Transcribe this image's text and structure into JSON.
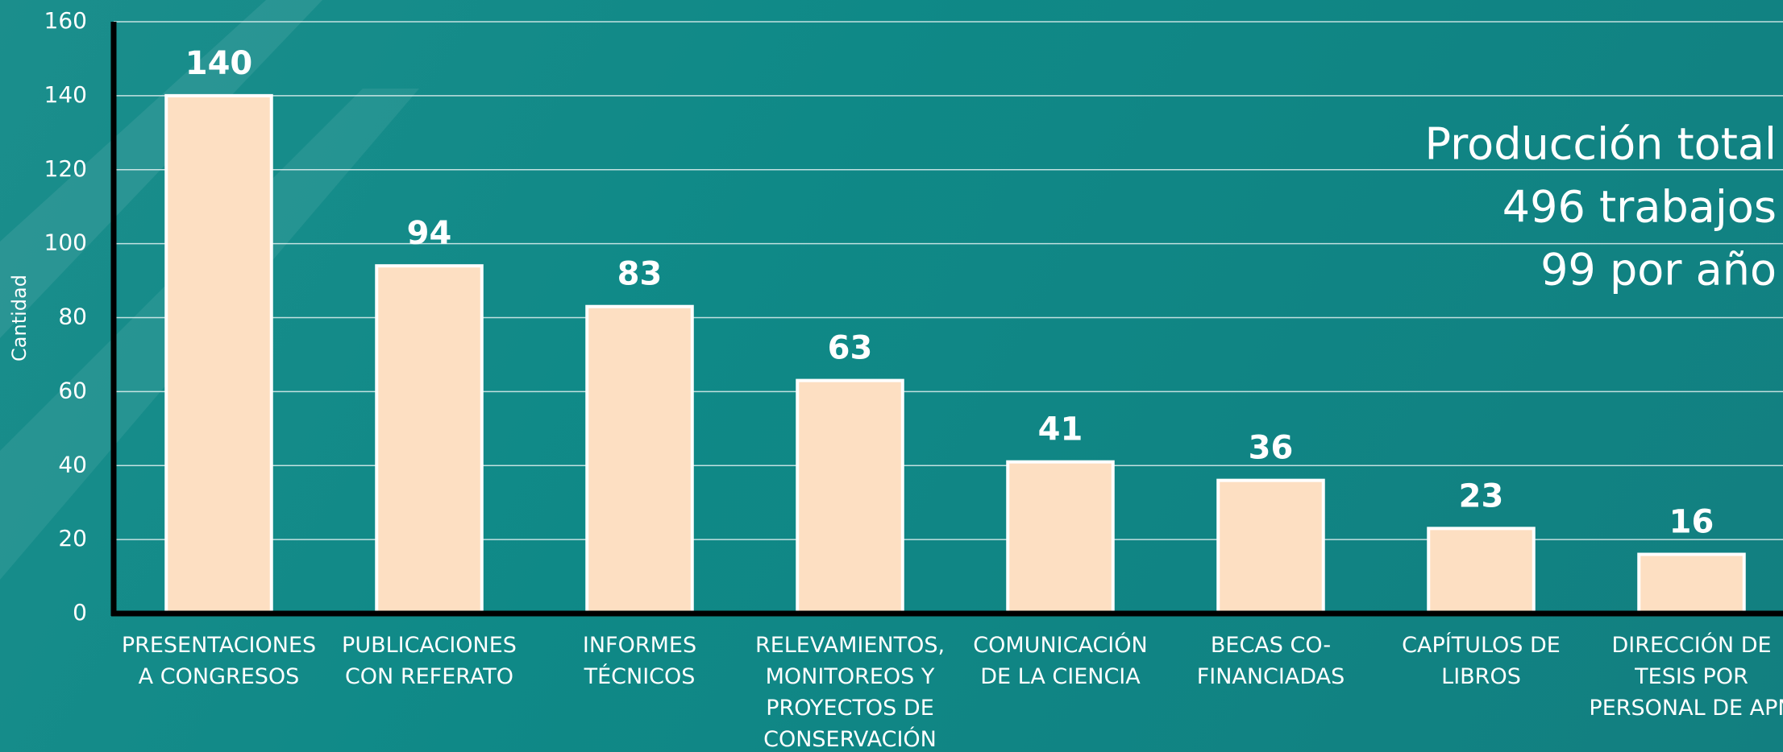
{
  "chart_data": {
    "type": "bar",
    "y_label": "Cantidad",
    "categories": [
      "PRESENTACIONES A CONGRESOS",
      "PUBLICACIONES CON REFERATO",
      "INFORMES TÉCNICOS",
      "RELEVAMIENTOS, MONITOREOS Y PROYECTOS DE CONSERVACIÓN",
      "COMUNICACIÓN DE LA CIENCIA",
      "BECAS CO-FINANCIADAS",
      "CAPÍTULOS DE LIBROS",
      "DIRECCIÓN DE TESIS POR PERSONAL DE APN"
    ],
    "values": [
      140,
      94,
      83,
      63,
      41,
      36,
      23,
      16
    ],
    "color": "#fddfc2",
    "ylim": [
      0,
      160
    ],
    "yticks": [
      0,
      20,
      40,
      60,
      80,
      100,
      120,
      140,
      160
    ],
    "grid": true,
    "annotations": [
      "Producción total",
      "496 trabajos",
      "99 por año"
    ]
  }
}
